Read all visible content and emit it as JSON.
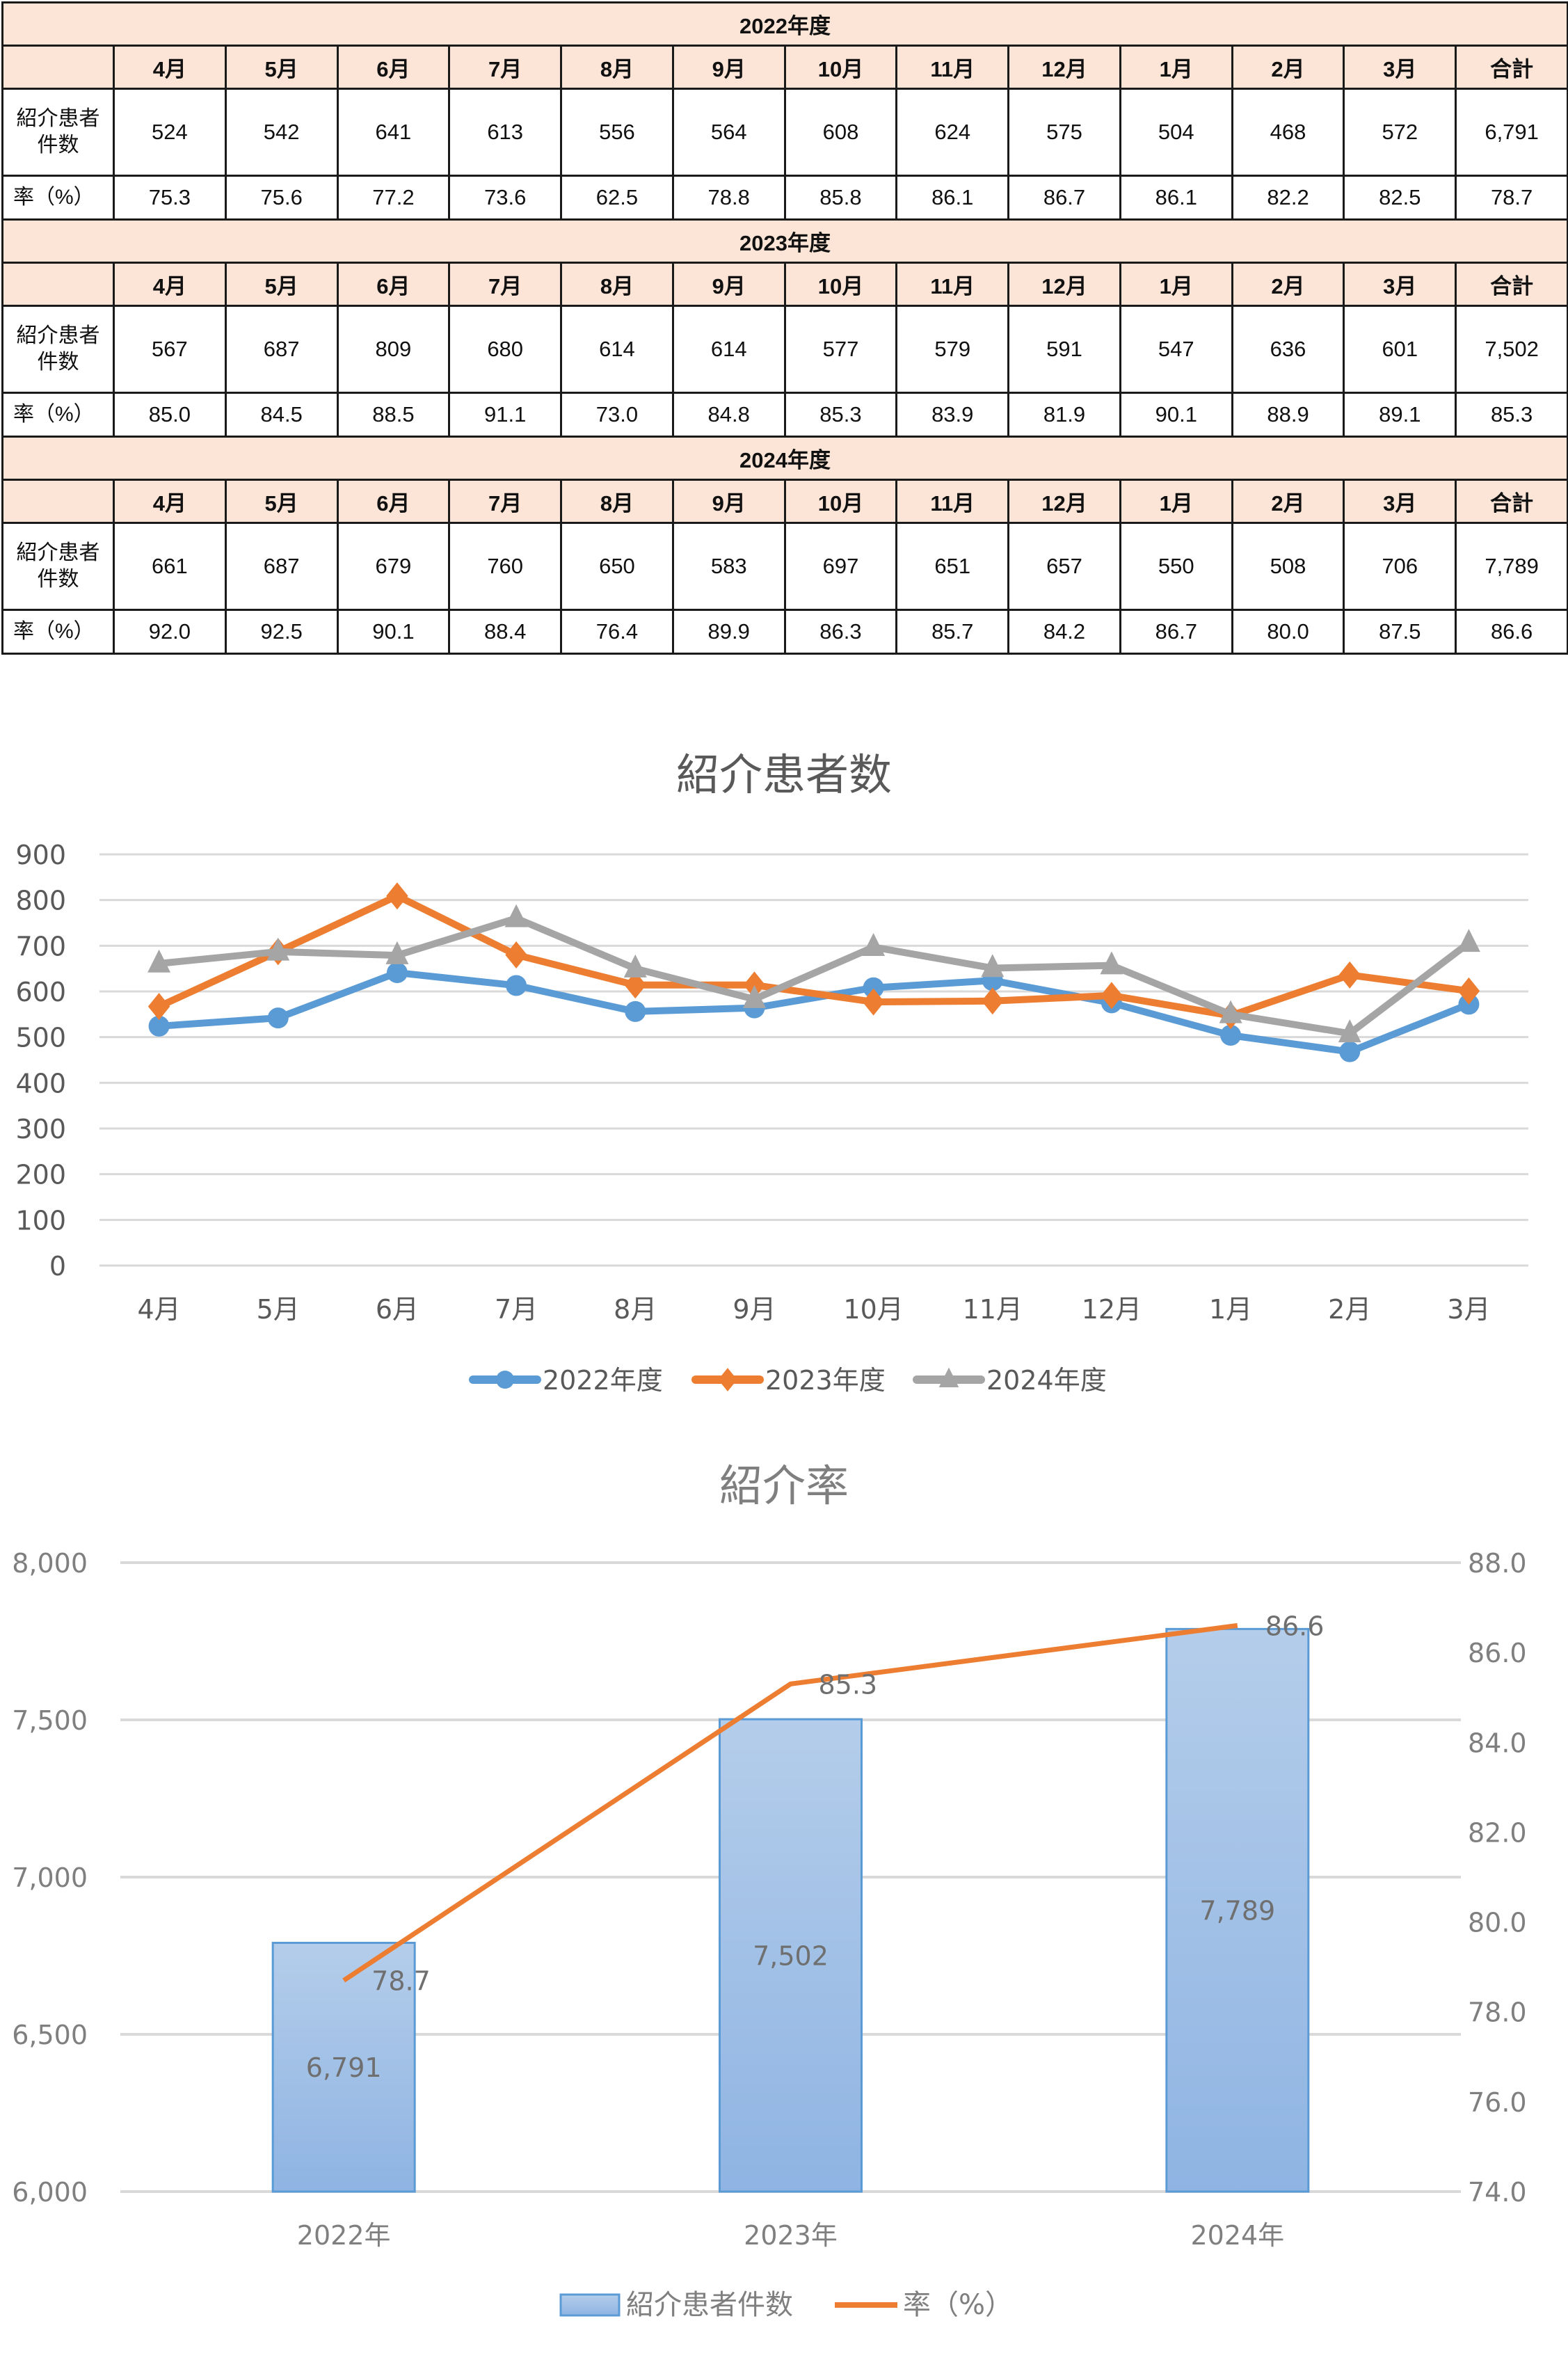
{
  "table": {
    "row_labels": {
      "count": "紹介患者件数",
      "count_line1": "紹介患者",
      "count_line2": "件数",
      "rate": "率（%）"
    },
    "columns": [
      "4月",
      "5月",
      "6月",
      "7月",
      "8月",
      "9月",
      "10月",
      "11月",
      "12月",
      "1月",
      "2月",
      "3月",
      "合計"
    ],
    "years": [
      {
        "title": "2022年度",
        "counts": [
          "524",
          "542",
          "641",
          "613",
          "556",
          "564",
          "608",
          "624",
          "575",
          "504",
          "468",
          "572",
          "6,791"
        ],
        "rates": [
          "75.3",
          "75.6",
          "77.2",
          "73.6",
          "62.5",
          "78.8",
          "85.8",
          "86.1",
          "86.7",
          "86.1",
          "82.2",
          "82.5",
          "78.7"
        ]
      },
      {
        "title": "2023年度",
        "counts": [
          "567",
          "687",
          "809",
          "680",
          "614",
          "614",
          "577",
          "579",
          "591",
          "547",
          "636",
          "601",
          "7,502"
        ],
        "rates": [
          "85.0",
          "84.5",
          "88.5",
          "91.1",
          "73.0",
          "84.8",
          "85.3",
          "83.9",
          "81.9",
          "90.1",
          "88.9",
          "89.1",
          "85.3"
        ]
      },
      {
        "title": "2024年度",
        "counts": [
          "661",
          "687",
          "679",
          "760",
          "650",
          "583",
          "697",
          "651",
          "657",
          "550",
          "508",
          "706",
          "7,789"
        ],
        "rates": [
          "92.0",
          "92.5",
          "90.1",
          "88.4",
          "76.4",
          "89.9",
          "86.3",
          "85.7",
          "84.2",
          "86.7",
          "80.0",
          "87.5",
          "86.6"
        ]
      }
    ]
  },
  "colors": {
    "header_bg": "#fce4d6",
    "series_2022": "#5b9bd5",
    "series_2023": "#ed7d31",
    "series_2024": "#a5a5a5",
    "bar_fill_top": "#b4cdea",
    "bar_fill_bottom": "#8fb4e3",
    "bar_border": "#5b9bd5",
    "rate_line": "#ed7d31",
    "grid": "#d9d9d9",
    "axis_text": "#595959"
  },
  "chart_data": [
    {
      "type": "line",
      "title": "紹介患者数",
      "categories": [
        "4月",
        "5月",
        "6月",
        "7月",
        "8月",
        "9月",
        "10月",
        "11月",
        "12月",
        "1月",
        "2月",
        "3月"
      ],
      "series": [
        {
          "name": "2022年度",
          "marker": "circle",
          "values": [
            524,
            542,
            641,
            613,
            556,
            564,
            608,
            624,
            575,
            504,
            468,
            572
          ]
        },
        {
          "name": "2023年度",
          "marker": "diamond",
          "values": [
            567,
            687,
            809,
            680,
            614,
            614,
            577,
            579,
            591,
            547,
            636,
            601
          ]
        },
        {
          "name": "2024年度",
          "marker": "triangle",
          "values": [
            661,
            687,
            679,
            760,
            650,
            583,
            697,
            651,
            657,
            550,
            508,
            706
          ]
        }
      ],
      "xlabel": "",
      "ylabel": "",
      "ylim": [
        0,
        900
      ],
      "yticks": [
        "0",
        "100",
        "200",
        "300",
        "400",
        "500",
        "600",
        "700",
        "800",
        "900"
      ],
      "grid": true,
      "legend_position": "bottom"
    },
    {
      "type": "bar",
      "title": "紹介率",
      "categories": [
        "2022年",
        "2023年",
        "2024年"
      ],
      "series": [
        {
          "name": "紹介患者件数",
          "type": "bar",
          "axis": "left",
          "values": [
            6791,
            7502,
            7789
          ],
          "labels": [
            "6,791",
            "7,502",
            "7,789"
          ]
        },
        {
          "name": "率（%）",
          "type": "line",
          "axis": "right",
          "values": [
            78.7,
            85.3,
            86.6
          ],
          "labels": [
            "78.7",
            "85.3",
            "86.6"
          ]
        }
      ],
      "ylim": [
        6000,
        8000
      ],
      "yticks": [
        "6,000",
        "6,500",
        "7,000",
        "7,500",
        "8,000"
      ],
      "y2lim": [
        74.0,
        88.0
      ],
      "y2ticks": [
        "74.0",
        "76.0",
        "78.0",
        "80.0",
        "82.0",
        "84.0",
        "86.0",
        "88.0"
      ],
      "grid": true,
      "legend_position": "bottom"
    }
  ]
}
